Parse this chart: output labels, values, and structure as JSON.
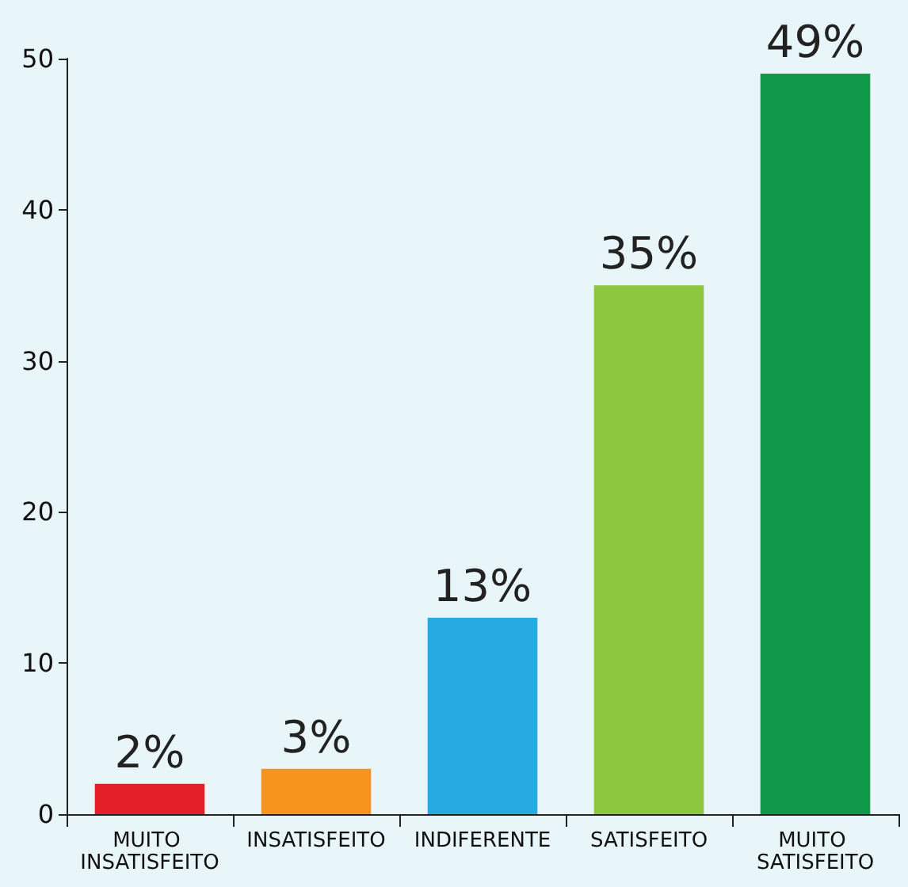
{
  "chart_data": {
    "type": "bar",
    "categories": [
      "MUITO INSATISFEITO",
      "INSATISFEITO",
      "INDIFERENTE",
      "SATISFEITO",
      "MUITO SATISFEITO"
    ],
    "values": [
      2,
      3,
      13,
      35,
      49
    ],
    "colors": [
      "#e31e26",
      "#f7941d",
      "#27aae1",
      "#8dc63f",
      "#0f9948"
    ],
    "value_labels": [
      "2%",
      "3%",
      "13%",
      "35%",
      "49%"
    ],
    "ylim": [
      0,
      50
    ],
    "yticks": [
      0,
      10,
      20,
      30,
      40,
      50
    ]
  }
}
